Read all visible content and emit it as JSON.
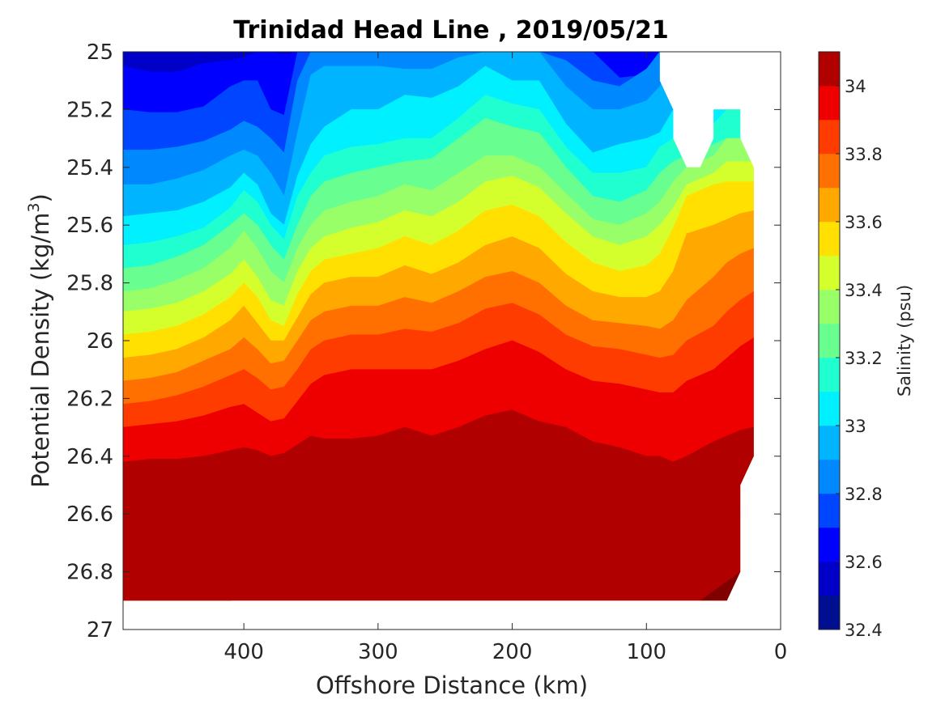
{
  "chart_data": {
    "type": "heatmap",
    "subtype": "filled-contour",
    "title": "Trinidad Head Line , 2019/05/21",
    "xlabel": "Offshore Distance (km)",
    "ylabel_main": "Potential Density (kg/m",
    "ylabel_sup": "3",
    "ylabel_end": ")",
    "xlim": [
      490,
      0
    ],
    "x_reversed": true,
    "xticks": [
      400,
      300,
      200,
      100,
      0
    ],
    "xtick_labels": [
      "400",
      "300",
      "200",
      "100",
      "0"
    ],
    "ylim": [
      25,
      27
    ],
    "y_reversed": true,
    "yticks": [
      25,
      25.2,
      25.4,
      25.6,
      25.8,
      26,
      26.2,
      26.4,
      26.6,
      26.8,
      27
    ],
    "ytick_labels": [
      "25",
      "25.2",
      "25.4",
      "25.6",
      "25.8",
      "26",
      "26.2",
      "26.4",
      "26.6",
      "26.8",
      "27"
    ],
    "colorbar": {
      "label": "Salinity (psu)",
      "range": [
        32.4,
        34.1
      ],
      "levels": [
        32.4,
        32.5,
        32.6,
        32.7,
        32.8,
        32.9,
        33.0,
        33.1,
        33.2,
        33.3,
        33.4,
        33.5,
        33.6,
        33.7,
        33.8,
        33.9,
        34.0,
        34.1
      ],
      "ticks": [
        32.4,
        32.6,
        32.8,
        33,
        33.2,
        33.4,
        33.6,
        33.8,
        34
      ],
      "tick_labels": [
        "32.4",
        "32.6",
        "32.8",
        "33",
        "33.2",
        "33.4",
        "33.6",
        "33.8",
        "34"
      ],
      "colormap": "jet",
      "colors": [
        "#000f8f",
        "#0000c8",
        "#0000ff",
        "#0045ff",
        "#0088ff",
        "#00b4ff",
        "#00f0ff",
        "#20ffd0",
        "#68ff90",
        "#98ff68",
        "#d4ff2c",
        "#ffe000",
        "#ffa800",
        "#ff7000",
        "#ff3c00",
        "#ee0000",
        "#b00000"
      ]
    },
    "data_extent": {
      "x_max_km": 490,
      "x_min_km": 20,
      "density_top": 25.0,
      "density_bottom": 26.9
    },
    "stations_km": [
      490,
      470,
      450,
      430,
      410,
      400,
      390,
      380,
      370,
      360,
      350,
      340,
      320,
      300,
      280,
      260,
      240,
      220,
      200,
      180,
      160,
      140,
      120,
      100,
      90,
      80,
      70,
      50,
      40,
      30,
      20
    ],
    "salinity_interfaces": {
      "density_at_level": [
        {
          "salinity": 32.5,
          "density": [
            25.05,
            25.07,
            25.07,
            25.04,
            25.03,
            25.02,
            25.0,
            25.0,
            25.01,
            25.0,
            25.0,
            25.0,
            25.0,
            25.0,
            25.0,
            25.0,
            25.0,
            25.0,
            25.0,
            25.0,
            25.0,
            25.0,
            25.0,
            25.0,
            25.0,
            25.0,
            25.0,
            25.0,
            25.0,
            25.0,
            25.0
          ]
        },
        {
          "salinity": 32.6,
          "density": [
            25.2,
            25.21,
            25.21,
            25.19,
            25.12,
            25.1,
            25.1,
            25.2,
            25.22,
            25.0,
            25.0,
            25.0,
            25.0,
            25.0,
            25.0,
            25.0,
            25.0,
            25.0,
            25.0,
            25.0,
            25.0,
            25.0,
            25.09,
            25.08,
            25.0,
            25.0,
            25.0,
            25.0,
            25.0,
            25.0,
            25.0
          ]
        },
        {
          "salinity": 32.7,
          "density": [
            25.34,
            25.34,
            25.33,
            25.31,
            25.27,
            25.24,
            25.26,
            25.3,
            25.35,
            25.1,
            25.0,
            25.0,
            25.0,
            25.0,
            25.0,
            25.0,
            25.0,
            25.0,
            25.0,
            25.0,
            25.03,
            25.1,
            25.12,
            25.06,
            25.0,
            25.0,
            25.0,
            25.0,
            25.0,
            25.0,
            25.0
          ]
        },
        {
          "salinity": 32.8,
          "density": [
            25.46,
            25.46,
            25.44,
            25.41,
            25.36,
            25.34,
            25.36,
            25.42,
            25.5,
            25.28,
            25.08,
            25.05,
            25.05,
            25.05,
            25.06,
            25.06,
            25.02,
            25.0,
            25.0,
            25.0,
            25.12,
            25.2,
            25.2,
            25.17,
            25.12,
            25.0,
            25.0,
            25.0,
            25.0,
            25.0,
            25.0
          ]
        },
        {
          "salinity": 32.9,
          "density": [
            25.57,
            25.56,
            25.55,
            25.52,
            25.47,
            25.42,
            25.46,
            25.56,
            25.6,
            25.43,
            25.32,
            25.26,
            25.2,
            25.2,
            25.15,
            25.16,
            25.12,
            25.05,
            25.1,
            25.1,
            25.25,
            25.35,
            25.32,
            25.3,
            25.28,
            25.2,
            25.2,
            25.2,
            25.2,
            25.2,
            25.2
          ]
        },
        {
          "salinity": 33.0,
          "density": [
            25.67,
            25.66,
            25.64,
            25.61,
            25.54,
            25.48,
            25.52,
            25.6,
            25.65,
            25.5,
            25.42,
            25.36,
            25.33,
            25.32,
            25.3,
            25.3,
            25.23,
            25.15,
            25.18,
            25.2,
            25.33,
            25.42,
            25.42,
            25.4,
            25.33,
            25.3,
            25.3,
            25.25,
            25.2,
            25.2,
            25.2
          ]
        },
        {
          "salinity": 33.1,
          "density": [
            25.75,
            25.74,
            25.71,
            25.67,
            25.6,
            25.56,
            25.6,
            25.67,
            25.72,
            25.6,
            25.5,
            25.45,
            25.42,
            25.4,
            25.38,
            25.37,
            25.3,
            25.23,
            25.26,
            25.28,
            25.4,
            25.5,
            25.52,
            25.48,
            25.42,
            25.38,
            25.36,
            25.32,
            25.3,
            25.3,
            25.3
          ]
        },
        {
          "salinity": 33.2,
          "density": [
            25.83,
            25.82,
            25.79,
            25.75,
            25.68,
            25.62,
            25.68,
            25.76,
            25.8,
            25.68,
            25.6,
            25.55,
            25.52,
            25.5,
            25.46,
            25.48,
            25.42,
            25.36,
            25.36,
            25.4,
            25.49,
            25.58,
            25.6,
            25.56,
            25.52,
            25.45,
            25.4,
            25.36,
            25.3,
            25.3,
            25.3
          ]
        },
        {
          "salinity": 33.3,
          "density": [
            25.9,
            25.89,
            25.87,
            25.83,
            25.77,
            25.72,
            25.78,
            25.86,
            25.88,
            25.76,
            25.68,
            25.64,
            25.61,
            25.59,
            25.55,
            25.57,
            25.52,
            25.45,
            25.43,
            25.47,
            25.56,
            25.64,
            25.67,
            25.64,
            25.6,
            25.54,
            25.46,
            25.42,
            25.38,
            25.38,
            25.38
          ]
        },
        {
          "salinity": 33.4,
          "density": [
            25.98,
            25.97,
            25.95,
            25.91,
            25.85,
            25.8,
            25.85,
            25.93,
            25.95,
            25.84,
            25.76,
            25.72,
            25.7,
            25.68,
            25.64,
            25.67,
            25.62,
            25.55,
            25.53,
            25.57,
            25.66,
            25.73,
            25.76,
            25.74,
            25.7,
            25.61,
            25.5,
            25.46,
            25.45,
            25.45,
            25.45
          ]
        },
        {
          "salinity": 33.5,
          "density": [
            26.06,
            26.05,
            26.03,
            25.99,
            25.93,
            25.88,
            25.94,
            26.0,
            26.0,
            25.92,
            25.84,
            25.8,
            25.78,
            25.78,
            25.74,
            25.77,
            25.73,
            25.67,
            25.64,
            25.68,
            25.77,
            25.83,
            25.85,
            25.85,
            25.83,
            25.76,
            25.63,
            25.6,
            25.58,
            25.56,
            25.55
          ]
        },
        {
          "salinity": 33.6,
          "density": [
            26.14,
            26.13,
            26.11,
            26.07,
            26.03,
            25.99,
            26.03,
            26.08,
            26.07,
            26.0,
            25.93,
            25.9,
            25.88,
            25.88,
            25.85,
            25.87,
            25.83,
            25.78,
            25.76,
            25.8,
            25.88,
            25.93,
            25.94,
            25.95,
            25.96,
            25.93,
            25.86,
            25.78,
            25.73,
            25.7,
            25.68
          ]
        },
        {
          "salinity": 33.7,
          "density": [
            26.22,
            26.21,
            26.19,
            26.16,
            26.12,
            26.1,
            26.13,
            26.17,
            26.16,
            26.1,
            26.03,
            26.0,
            25.98,
            25.98,
            25.96,
            25.97,
            25.94,
            25.89,
            25.87,
            25.91,
            25.98,
            26.02,
            26.03,
            26.05,
            26.06,
            26.05,
            26.0,
            25.95,
            25.9,
            25.86,
            25.83
          ]
        },
        {
          "salinity": 33.8,
          "density": [
            26.3,
            26.29,
            26.28,
            26.26,
            26.23,
            26.22,
            26.25,
            26.28,
            26.27,
            26.21,
            26.15,
            26.12,
            26.1,
            26.1,
            26.1,
            26.1,
            26.07,
            26.03,
            26.0,
            26.04,
            26.1,
            26.14,
            26.15,
            26.17,
            26.18,
            26.18,
            26.14,
            26.1,
            26.06,
            26.02,
            25.99
          ]
        },
        {
          "salinity": 33.9,
          "density": [
            26.42,
            26.41,
            26.41,
            26.4,
            26.38,
            26.37,
            26.38,
            26.4,
            26.39,
            26.36,
            26.33,
            26.34,
            26.34,
            26.33,
            26.3,
            26.33,
            26.3,
            26.26,
            26.24,
            26.28,
            26.3,
            26.35,
            26.37,
            26.4,
            26.4,
            26.42,
            26.4,
            26.35,
            26.33,
            26.31,
            26.3
          ]
        },
        {
          "salinity": 34.0,
          "density": [
            26.9,
            26.9,
            26.9,
            26.9,
            26.9,
            26.88,
            26.88,
            26.85,
            26.82,
            26.76,
            26.73,
            26.72,
            26.72,
            26.7,
            26.68,
            26.66,
            26.6,
            26.5,
            26.5,
            26.6,
            26.67,
            26.71,
            26.73,
            26.72,
            26.66,
            26.62,
            26.6,
            26.57,
            26.58,
            26.6,
            26.6
          ]
        }
      ]
    },
    "bottom_boundary": [
      {
        "x": 30,
        "density": 26.8
      },
      {
        "x": 30,
        "density": 26.5
      },
      {
        "x": 20,
        "density": 26.4
      },
      {
        "x": 20,
        "density": 25.4
      }
    ],
    "top_boundary": [
      {
        "x": 90,
        "density": 25.0
      },
      {
        "x": 90,
        "density": 25.1
      },
      {
        "x": 80,
        "density": 25.2
      },
      {
        "x": 80,
        "density": 25.3
      },
      {
        "x": 70,
        "density": 25.4
      },
      {
        "x": 60,
        "density": 25.4
      },
      {
        "x": 50,
        "density": 25.3
      },
      {
        "x": 50,
        "density": 25.2
      },
      {
        "x": 30,
        "density": 25.2
      },
      {
        "x": 30,
        "density": 25.3
      },
      {
        "x": 20,
        "density": 25.4
      }
    ]
  }
}
